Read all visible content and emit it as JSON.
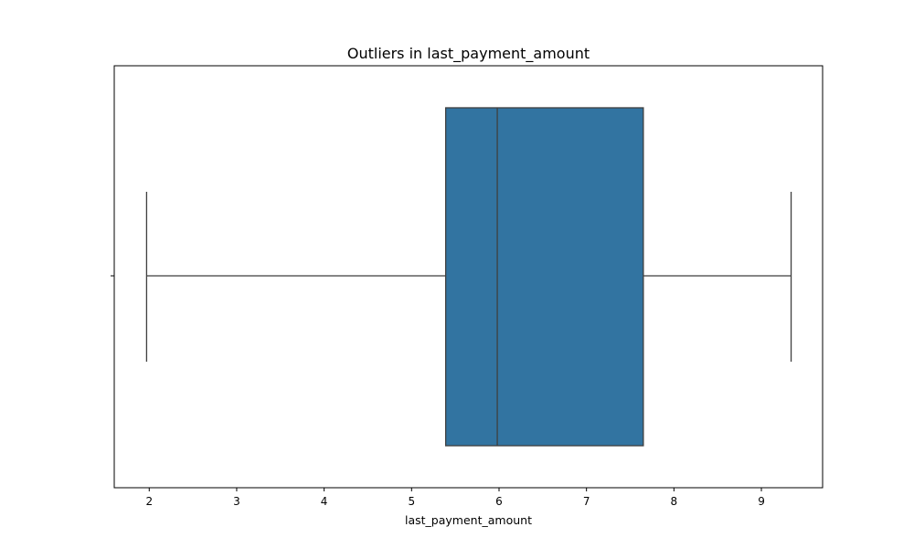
{
  "chart_data": {
    "type": "box",
    "title": "Outliers in last_payment_amount",
    "xlabel": "last_payment_amount",
    "ylabel": "",
    "orientation": "horizontal",
    "xlim": [
      1.6,
      9.7
    ],
    "x_ticks": [
      2,
      3,
      4,
      5,
      6,
      7,
      8,
      9
    ],
    "x_tick_labels": [
      "2",
      "3",
      "4",
      "5",
      "6",
      "7",
      "8",
      "9"
    ],
    "grid": false,
    "box": {
      "whisker_low": 1.97,
      "q1": 5.39,
      "median": 5.98,
      "q3": 7.65,
      "whisker_high": 9.34,
      "outliers": []
    },
    "colors": {
      "box_fill": "#3274a1",
      "lines": "#3f3f3f",
      "axes": "#000000"
    }
  }
}
